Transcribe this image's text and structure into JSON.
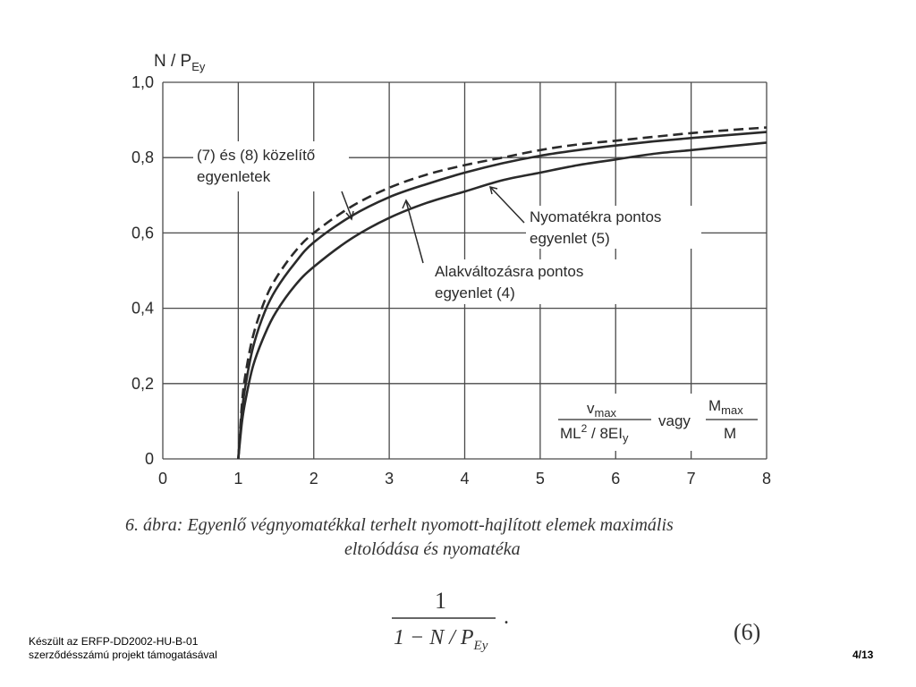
{
  "chart_data": {
    "type": "line",
    "ylabel_main": "N / P",
    "ylabel_sub": "Ey",
    "xlim": [
      0,
      8
    ],
    "ylim": [
      0,
      1
    ],
    "x_ticks": [
      "0",
      "1",
      "2",
      "3",
      "4",
      "5",
      "6",
      "7",
      "8"
    ],
    "y_ticks": [
      "1,0",
      "0,8",
      "0,6",
      "0,4",
      "0,2",
      "0"
    ],
    "grid": true,
    "series": [
      {
        "name_lines": [
          "(7) és (8) közelítő",
          "egyenletek"
        ],
        "style": "dashed",
        "x": [
          1.0,
          1.05,
          1.1,
          1.2,
          1.35,
          1.5,
          1.75,
          2,
          2.5,
          3,
          3.5,
          4,
          4.5,
          5,
          5.5,
          6,
          6.5,
          7,
          7.5,
          8
        ],
        "y": [
          0.0,
          0.15,
          0.23,
          0.33,
          0.42,
          0.48,
          0.55,
          0.6,
          0.67,
          0.72,
          0.755,
          0.78,
          0.8,
          0.82,
          0.835,
          0.845,
          0.855,
          0.865,
          0.873,
          0.88
        ]
      },
      {
        "name_lines": [
          "Nyomatékra pontos",
          "egyenlet (5)"
        ],
        "style": "solid",
        "x": [
          1.0,
          1.05,
          1.1,
          1.2,
          1.35,
          1.5,
          1.75,
          2,
          2.5,
          3,
          3.5,
          4,
          4.5,
          5,
          5.5,
          6,
          6.5,
          7,
          7.5,
          8
        ],
        "y": [
          0.0,
          0.13,
          0.2,
          0.3,
          0.39,
          0.45,
          0.52,
          0.575,
          0.645,
          0.695,
          0.73,
          0.76,
          0.785,
          0.805,
          0.82,
          0.832,
          0.843,
          0.852,
          0.86,
          0.868
        ]
      },
      {
        "name_lines": [
          "Alakváltozásra pontos",
          "egyenlet (4)"
        ],
        "style": "solid",
        "x": [
          1.0,
          1.05,
          1.1,
          1.2,
          1.35,
          1.5,
          1.75,
          2,
          2.5,
          3,
          3.5,
          4,
          4.5,
          5,
          5.5,
          6,
          6.5,
          7,
          7.5,
          8
        ],
        "y": [
          0.0,
          0.1,
          0.16,
          0.25,
          0.33,
          0.39,
          0.46,
          0.51,
          0.585,
          0.64,
          0.68,
          0.71,
          0.74,
          0.76,
          0.78,
          0.795,
          0.81,
          0.82,
          0.83,
          0.84
        ]
      }
    ],
    "xlabel_formula": {
      "num1": "v",
      "num1_sub": "max",
      "den1": "ML",
      "den1_sup": "2",
      "den1_rest": " / 8EI",
      "den1_sub": "y",
      "vagy": "vagy",
      "num2": "M",
      "num2_sub": "max",
      "den2": "M"
    }
  },
  "caption": {
    "line1": "6. ábra: Egyenlő végnyomatékkal terhelt nyomott-hajlított elemek maximális",
    "line2": "eltolódása és nyomatéka"
  },
  "formula": {
    "numerator": "1",
    "denominator": "1 − N / P",
    "denominator_sub": "Ey",
    "dot": ".",
    "eq_number": "(6)"
  },
  "footer": {
    "line1": "Készült az ERFP-DD2002-HU-B-01",
    "line2": "szerződésszámú projekt támogatásával",
    "page": "4/13"
  }
}
